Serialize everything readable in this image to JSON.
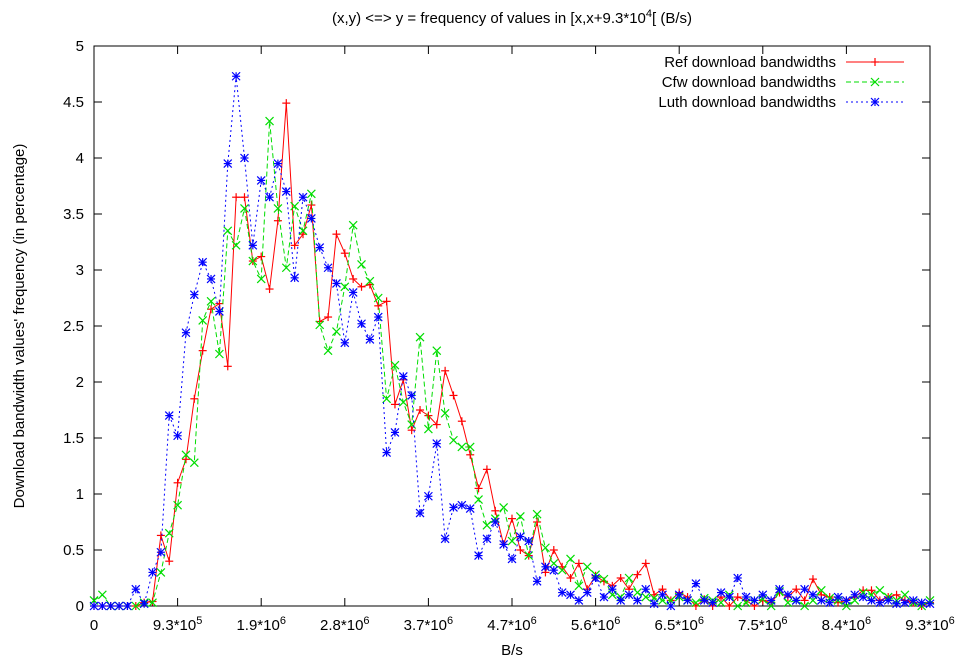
{
  "chart_data": {
    "type": "line",
    "title_main": "(x,y) <=> y = frequency of values in [x,x+9.3*10",
    "title_sup": "4",
    "title_end": "[ (B/s)",
    "xlabel": "B/s",
    "ylabel": "Download bandwidth values' frequency (in percentage)",
    "xlim": [
      0,
      9300000
    ],
    "ylim": [
      0,
      5
    ],
    "yticks": [
      {
        "value": 0,
        "label": "0"
      },
      {
        "value": 0.5,
        "label": "0.5"
      },
      {
        "value": 1,
        "label": "1"
      },
      {
        "value": 1.5,
        "label": "1.5"
      },
      {
        "value": 2,
        "label": "2"
      },
      {
        "value": 2.5,
        "label": "2.5"
      },
      {
        "value": 3,
        "label": "3"
      },
      {
        "value": 3.5,
        "label": "3.5"
      },
      {
        "value": 4,
        "label": "4"
      },
      {
        "value": 4.5,
        "label": "4.5"
      },
      {
        "value": 5,
        "label": "5"
      }
    ],
    "xticks": [
      {
        "value": 0,
        "base": "0",
        "exp": ""
      },
      {
        "value": 930000,
        "base": "9.3*10",
        "exp": "5"
      },
      {
        "value": 1860000,
        "base": "1.9*10",
        "exp": "6"
      },
      {
        "value": 2790000,
        "base": "2.8*10",
        "exp": "6"
      },
      {
        "value": 3720000,
        "base": "3.7*10",
        "exp": "6"
      },
      {
        "value": 4650000,
        "base": "4.7*10",
        "exp": "6"
      },
      {
        "value": 5580000,
        "base": "5.6*10",
        "exp": "6"
      },
      {
        "value": 6510000,
        "base": "6.5*10",
        "exp": "6"
      },
      {
        "value": 7440000,
        "base": "7.5*10",
        "exp": "6"
      },
      {
        "value": 8370000,
        "base": "8.4*10",
        "exp": "6"
      },
      {
        "value": 9300000,
        "base": "9.3*10",
        "exp": "6"
      }
    ],
    "bin_width": 93000,
    "legend_position": "top-right",
    "grid": false,
    "series": [
      {
        "name": "Ref download bandwidths",
        "color": "#ff0000",
        "dash": "",
        "marker": "plus",
        "values": [
          0,
          0,
          0,
          0,
          0,
          0,
          0.03,
          0.04,
          0.63,
          0.4,
          1.1,
          1.31,
          1.85,
          2.28,
          2.65,
          2.7,
          2.14,
          3.65,
          3.65,
          3.08,
          3.12,
          2.83,
          3.44,
          4.49,
          3.22,
          3.32,
          3.58,
          2.54,
          2.58,
          3.32,
          3.15,
          2.92,
          2.85,
          2.87,
          2.68,
          2.72,
          1.8,
          2.02,
          1.57,
          1.75,
          1.7,
          1.62,
          2.1,
          1.88,
          1.65,
          1.35,
          1.05,
          1.22,
          0.85,
          0.55,
          0.78,
          0.5,
          0.45,
          0.75,
          0.3,
          0.5,
          0.35,
          0.25,
          0.38,
          0.15,
          0.27,
          0.22,
          0.18,
          0.25,
          0.15,
          0.28,
          0.38,
          0.1,
          0.15,
          0.05,
          0.12,
          0.08,
          0.0,
          0.06,
          0.0,
          0.08,
          0.0,
          0.08,
          0.05,
          0.0,
          0.05,
          0.03,
          0.12,
          0.08,
          0.15,
          0.05,
          0.24,
          0.1,
          0.08,
          0.03,
          0.05,
          0.08,
          0.14,
          0.14,
          0.05,
          0.08,
          0.1,
          0.05,
          0.03,
          0.0,
          0.03
        ]
      },
      {
        "name": "Cfw download bandwidths",
        "color": "#00dd00",
        "dash": "5,3",
        "marker": "x",
        "values": [
          0.05,
          0.1,
          0,
          0,
          0,
          0,
          0.03,
          0.03,
          0.3,
          0.65,
          0.9,
          1.35,
          1.28,
          2.55,
          2.72,
          2.25,
          3.35,
          3.22,
          3.55,
          3.08,
          2.92,
          4.33,
          3.55,
          3.02,
          3.57,
          3.35,
          3.68,
          2.51,
          2.28,
          2.45,
          2.85,
          3.4,
          3.05,
          2.9,
          2.75,
          1.85,
          2.15,
          1.82,
          1.62,
          2.4,
          1.58,
          2.28,
          1.72,
          1.48,
          1.42,
          1.42,
          0.95,
          0.72,
          0.78,
          0.88,
          0.58,
          0.8,
          0.45,
          0.82,
          0.52,
          0.38,
          0.32,
          0.42,
          0.18,
          0.35,
          0.28,
          0.24,
          0.1,
          0.08,
          0.25,
          0.12,
          0.08,
          0.07,
          0.05,
          0.05,
          0.08,
          0.05,
          0.03,
          0.07,
          0.05,
          0.03,
          0.1,
          0.0,
          0.03,
          0.05,
          0.06,
          0.0,
          0.13,
          0.03,
          0.05,
          0.0,
          0.05,
          0.14,
          0.07,
          0.05,
          0.0,
          0.05,
          0.12,
          0.1,
          0.14,
          0.08,
          0.05,
          0.1,
          0.03,
          0.0,
          0.05
        ]
      },
      {
        "name": "Luth download bandwidths",
        "color": "#0000ff",
        "dash": "2,3",
        "marker": "star",
        "values": [
          0,
          0,
          0,
          0,
          0,
          0.15,
          0.02,
          0.3,
          0.48,
          1.7,
          1.52,
          2.44,
          2.78,
          3.07,
          2.92,
          2.63,
          3.95,
          4.73,
          4.0,
          3.22,
          3.8,
          3.65,
          3.95,
          3.7,
          2.93,
          3.65,
          3.46,
          3.2,
          3.02,
          2.88,
          2.35,
          2.8,
          2.52,
          2.38,
          2.58,
          1.37,
          1.55,
          2.05,
          1.88,
          0.83,
          0.98,
          1.45,
          0.6,
          0.88,
          0.9,
          0.87,
          0.45,
          0.6,
          0.75,
          0.55,
          0.42,
          0.62,
          0.58,
          0.22,
          0.35,
          0.32,
          0.12,
          0.1,
          0.05,
          0.12,
          0.25,
          0.08,
          0.15,
          0.05,
          0.1,
          0.05,
          0.15,
          0.02,
          0.1,
          0.0,
          0.1,
          0.05,
          0.2,
          0.05,
          0.03,
          0.12,
          0.08,
          0.25,
          0.08,
          0.05,
          0.1,
          0.05,
          0.15,
          0.1,
          0.05,
          0.15,
          0.1,
          0.05,
          0.03,
          0.08,
          0.05,
          0.1,
          0.08,
          0.05,
          0.03,
          0.05,
          0.02,
          0.03,
          0.05,
          0.03,
          0.02
        ]
      }
    ]
  }
}
